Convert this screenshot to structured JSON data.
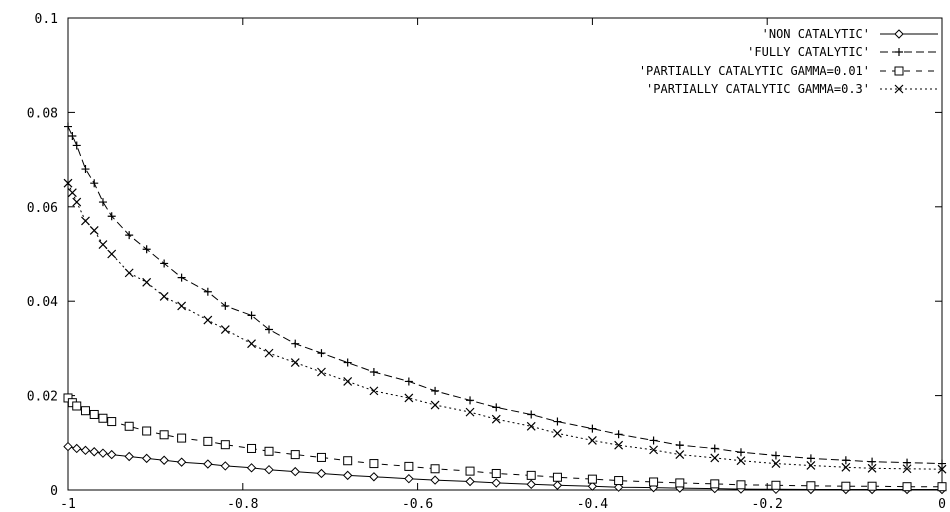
{
  "chart_data": {
    "type": "line",
    "xlim": [
      -1,
      0
    ],
    "ylim": [
      0,
      0.1
    ],
    "x_ticks": [
      "-1",
      "-0.8",
      "-0.6",
      "-0.4",
      "-0.2",
      "0"
    ],
    "y_ticks": [
      "0",
      "0.02",
      "0.04",
      "0.06",
      "0.08",
      "0.1"
    ],
    "reference_line_x": 0,
    "legend_position": "top-right",
    "grid": false,
    "series": [
      {
        "name": "'NON CATALYTIC'",
        "marker": "diamond",
        "dash": "none",
        "x": [
          -1.0,
          -0.99,
          -0.98,
          -0.97,
          -0.96,
          -0.95,
          -0.93,
          -0.91,
          -0.89,
          -0.87,
          -0.84,
          -0.82,
          -0.79,
          -0.77,
          -0.74,
          -0.71,
          -0.68,
          -0.65,
          -0.61,
          -0.58,
          -0.54,
          -0.51,
          -0.47,
          -0.44,
          -0.4,
          -0.37,
          -0.33,
          -0.3,
          -0.26,
          -0.23,
          -0.19,
          -0.15,
          -0.11,
          -0.08,
          -0.04,
          0.0
        ],
        "y": [
          0.0092,
          0.0088,
          0.0084,
          0.0081,
          0.0078,
          0.0075,
          0.0071,
          0.0067,
          0.0063,
          0.0059,
          0.0055,
          0.0051,
          0.0047,
          0.0043,
          0.0039,
          0.0035,
          0.0031,
          0.0028,
          0.0024,
          0.0021,
          0.0018,
          0.0015,
          0.0012,
          0.001,
          0.0008,
          0.0006,
          0.0005,
          0.0004,
          0.0003,
          0.0002,
          0.00015,
          0.0001,
          0.0001,
          0.0001,
          0.0001,
          0.0001
        ]
      },
      {
        "name": "'FULLY CATALYTIC'",
        "marker": "plus",
        "dash": "8,4",
        "x": [
          -1.0,
          -0.995,
          -0.99,
          -0.98,
          -0.97,
          -0.96,
          -0.95,
          -0.93,
          -0.91,
          -0.89,
          -0.87,
          -0.84,
          -0.82,
          -0.79,
          -0.77,
          -0.74,
          -0.71,
          -0.68,
          -0.65,
          -0.61,
          -0.58,
          -0.54,
          -0.51,
          -0.47,
          -0.44,
          -0.4,
          -0.37,
          -0.33,
          -0.3,
          -0.26,
          -0.23,
          -0.19,
          -0.15,
          -0.11,
          -0.08,
          -0.04,
          0.0
        ],
        "y": [
          0.077,
          0.075,
          0.073,
          0.068,
          0.065,
          0.061,
          0.058,
          0.054,
          0.051,
          0.048,
          0.045,
          0.042,
          0.039,
          0.037,
          0.034,
          0.031,
          0.029,
          0.027,
          0.025,
          0.023,
          0.021,
          0.019,
          0.0175,
          0.016,
          0.0145,
          0.013,
          0.0118,
          0.0105,
          0.0095,
          0.0088,
          0.008,
          0.0073,
          0.0067,
          0.0063,
          0.006,
          0.0058,
          0.0056
        ]
      },
      {
        "name": "'PARTIALLY CATALYTIC GAMMA=0.01'",
        "marker": "square",
        "dash": "6,6",
        "x": [
          -1.0,
          -0.995,
          -0.99,
          -0.98,
          -0.97,
          -0.96,
          -0.95,
          -0.93,
          -0.91,
          -0.89,
          -0.87,
          -0.84,
          -0.82,
          -0.79,
          -0.77,
          -0.74,
          -0.71,
          -0.68,
          -0.65,
          -0.61,
          -0.58,
          -0.54,
          -0.51,
          -0.47,
          -0.44,
          -0.4,
          -0.37,
          -0.33,
          -0.3,
          -0.26,
          -0.23,
          -0.19,
          -0.15,
          -0.11,
          -0.08,
          -0.04,
          0.0
        ],
        "y": [
          0.0195,
          0.0185,
          0.0178,
          0.0168,
          0.016,
          0.0152,
          0.0145,
          0.0135,
          0.0125,
          0.0117,
          0.011,
          0.0103,
          0.0096,
          0.0088,
          0.0082,
          0.0075,
          0.0069,
          0.0062,
          0.0056,
          0.005,
          0.0045,
          0.004,
          0.0035,
          0.0031,
          0.0027,
          0.0023,
          0.002,
          0.0017,
          0.0015,
          0.0013,
          0.0011,
          0.001,
          0.0009,
          0.0008,
          0.0008,
          0.0007,
          0.0007
        ]
      },
      {
        "name": "'PARTIALLY CATALYTIC GAMMA=0.3'",
        "marker": "cross",
        "dash": "2,3",
        "x": [
          -1.0,
          -0.995,
          -0.99,
          -0.98,
          -0.97,
          -0.96,
          -0.95,
          -0.93,
          -0.91,
          -0.89,
          -0.87,
          -0.84,
          -0.82,
          -0.79,
          -0.77,
          -0.74,
          -0.71,
          -0.68,
          -0.65,
          -0.61,
          -0.58,
          -0.54,
          -0.51,
          -0.47,
          -0.44,
          -0.4,
          -0.37,
          -0.33,
          -0.3,
          -0.26,
          -0.23,
          -0.19,
          -0.15,
          -0.11,
          -0.08,
          -0.04,
          0.0
        ],
        "y": [
          0.065,
          0.063,
          0.061,
          0.057,
          0.055,
          0.052,
          0.05,
          0.046,
          0.044,
          0.041,
          0.039,
          0.036,
          0.034,
          0.031,
          0.029,
          0.027,
          0.025,
          0.023,
          0.021,
          0.0195,
          0.018,
          0.0165,
          0.015,
          0.0135,
          0.012,
          0.0105,
          0.0095,
          0.0085,
          0.0075,
          0.0068,
          0.0062,
          0.0056,
          0.0052,
          0.0048,
          0.0046,
          0.0045,
          0.0044
        ]
      }
    ]
  }
}
